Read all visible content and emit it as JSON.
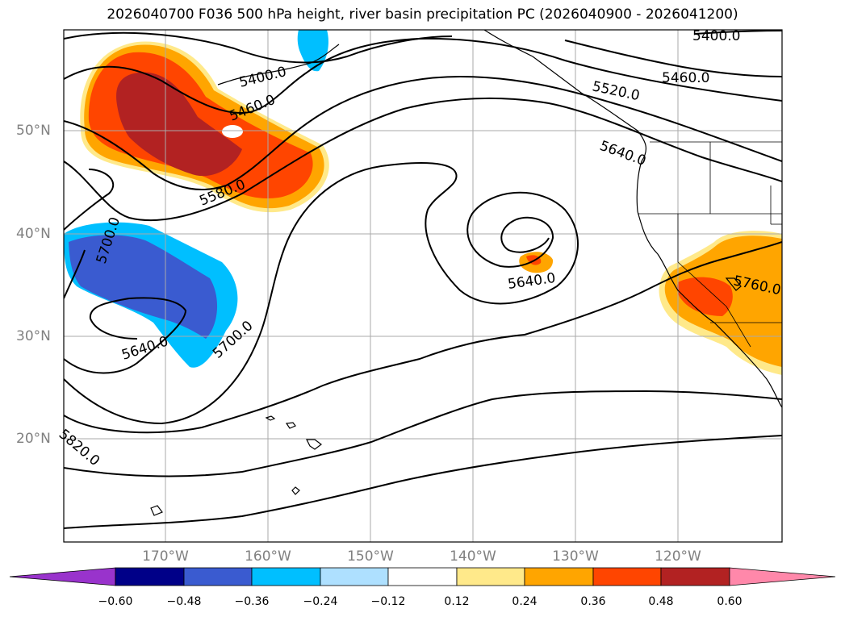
{
  "title": "2026040700 F036 500 hPa height, river basin precipitation PC (2026040900 - 2026041200)",
  "lat_labels": [
    "50°N",
    "40°N",
    "30°N",
    "20°N"
  ],
  "lon_labels": [
    "170°W",
    "160°W",
    "150°W",
    "140°W",
    "130°W",
    "120°W"
  ],
  "contour_labels": [
    "5400.0",
    "5400.0",
    "5460.0",
    "5460.0",
    "5520.0",
    "5580.0",
    "5640.0",
    "5640.0",
    "5640.0",
    "5700.0",
    "5700.0",
    "5760.0",
    "5820.0"
  ],
  "colorbar": {
    "tick_labels": [
      "−0.60",
      "−0.48",
      "−0.36",
      "−0.24",
      "−0.12",
      "0.12",
      "0.24",
      "0.36",
      "0.48",
      "0.60"
    ],
    "colors": [
      "#9933cc",
      "#000088",
      "#3a5bd0",
      "#00bfff",
      "#aee0ff",
      "#ffffff",
      "#ffe98a",
      "#ffa500",
      "#ff4500",
      "#b22222",
      "#ff88aa"
    ]
  },
  "colors": {
    "grid": "#aaaaaa",
    "contour": "#000000",
    "tick_text": "#808080"
  }
}
